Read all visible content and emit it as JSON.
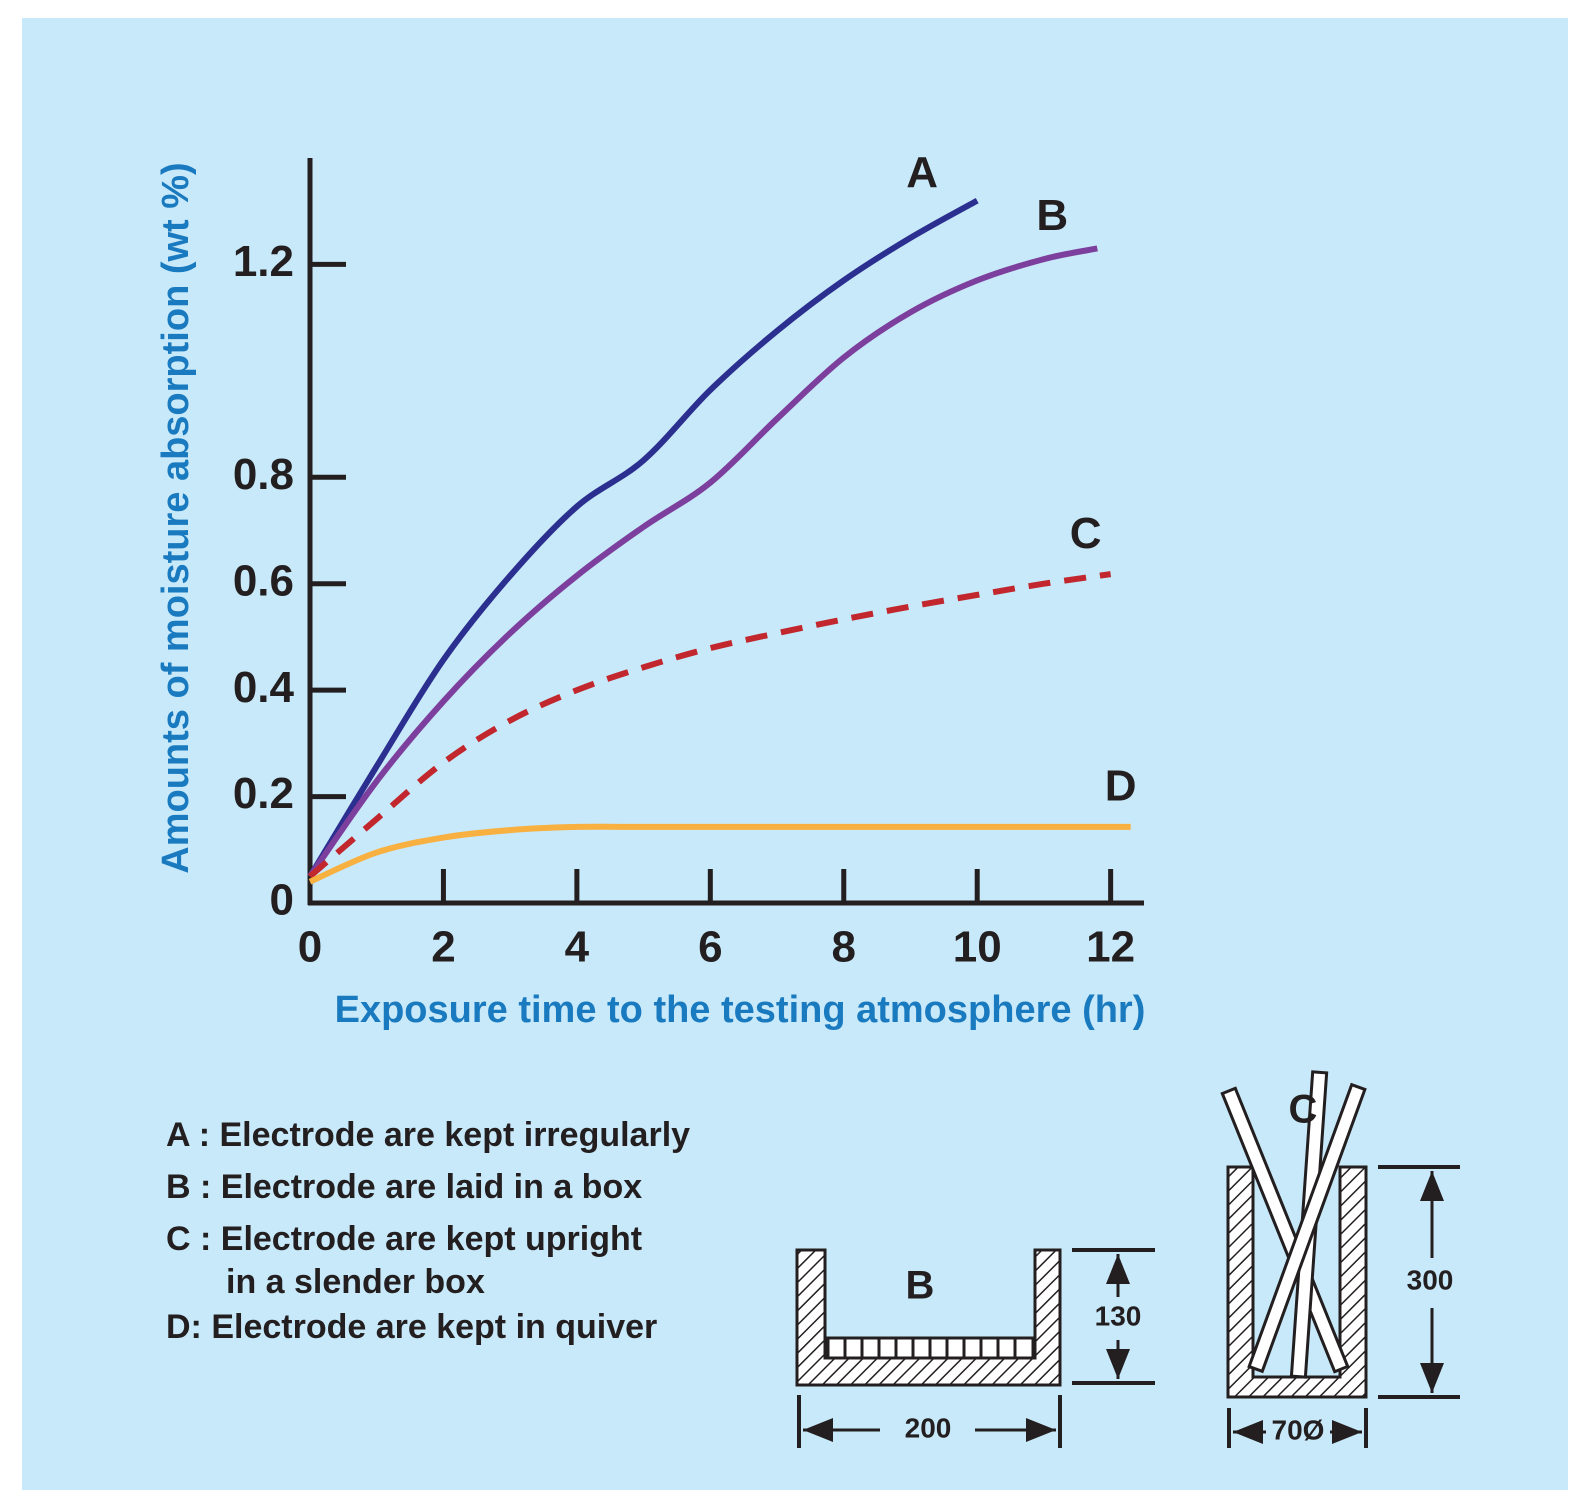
{
  "chart_data": {
    "type": "line",
    "x_label": "Exposure time to the testing atmosphere (hr)",
    "y_label": "Amounts of moisture absorption (wt %)",
    "xlim": [
      0,
      12.5
    ],
    "xticks": [
      0,
      2,
      4,
      6,
      8,
      10,
      12
    ],
    "ylim": [
      0,
      1.4
    ],
    "yticks": [
      0,
      0.2,
      0.4,
      0.6,
      0.8,
      1.2
    ],
    "series": [
      {
        "name": "A",
        "color": "#2b2f8f",
        "dashed": false,
        "x": [
          0,
          1,
          2,
          3,
          4,
          5,
          6,
          7,
          8,
          9,
          10
        ],
        "values": [
          0.05,
          0.257,
          0.457,
          0.615,
          0.745,
          0.832,
          0.964,
          1.075,
          1.17,
          1.25,
          1.32
        ]
      },
      {
        "name": "B",
        "color": "#7d3f9d",
        "dashed": false,
        "x": [
          0,
          1,
          2,
          3,
          4,
          5,
          6,
          7,
          8,
          9,
          10,
          11,
          11.8
        ],
        "values": [
          0.05,
          0.229,
          0.379,
          0.507,
          0.615,
          0.707,
          0.79,
          0.91,
          1.025,
          1.11,
          1.17,
          1.21,
          1.23
        ]
      },
      {
        "name": "C",
        "color": "#c1272d",
        "dashed": true,
        "x": [
          0,
          1,
          2,
          3,
          4,
          5,
          6,
          7,
          8,
          9,
          10,
          11,
          12
        ],
        "values": [
          0.05,
          0.158,
          0.264,
          0.343,
          0.4,
          0.443,
          0.479,
          0.507,
          0.533,
          0.557,
          0.579,
          0.6,
          0.618
        ]
      },
      {
        "name": "D",
        "color": "#f8b040",
        "dashed": false,
        "x": [
          0,
          1,
          2,
          3,
          4,
          5,
          8,
          12.3
        ],
        "values": [
          0.04,
          0.095,
          0.123,
          0.137,
          0.143,
          0.143,
          0.143,
          0.143
        ]
      }
    ],
    "notes": [
      "A : Electrode are kept irregularly",
      "B : Electrode are laid in a box",
      "C : Electrode are kept upright",
      "in a slender box",
      "D: Electrode are kept in quiver"
    ]
  },
  "diagrams": {
    "box": {
      "label": "B",
      "height": "130",
      "width": "200"
    },
    "slender_box": {
      "label": "C",
      "height": "300",
      "width": "70Ø"
    }
  }
}
